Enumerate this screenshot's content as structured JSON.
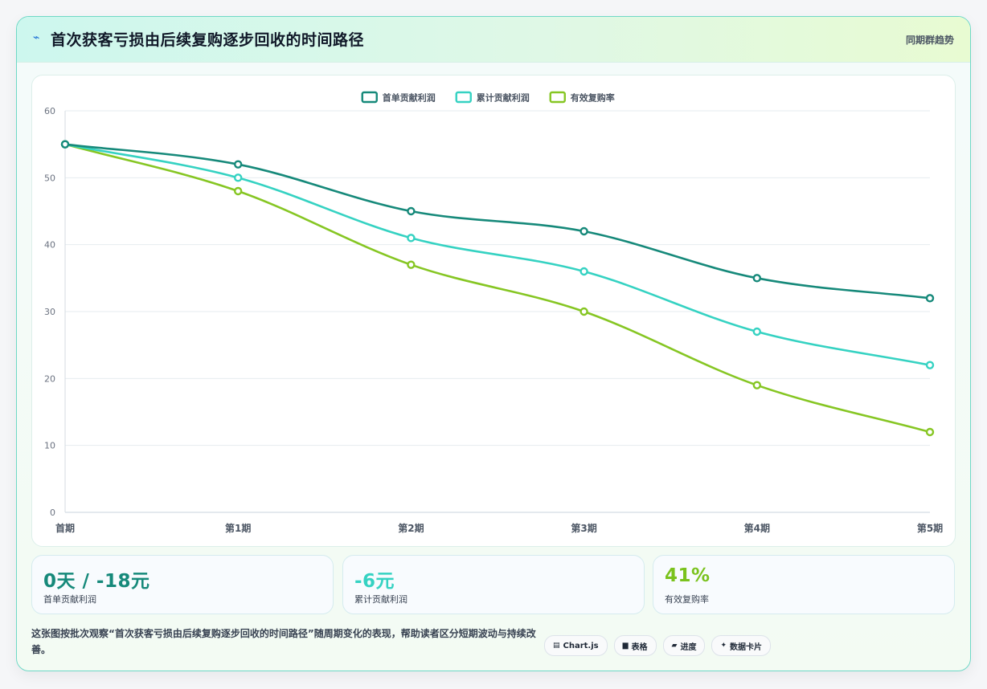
{
  "header": {
    "title": "首次获客亏损由后续复购逐步回收的时间路径",
    "right_label": "同期群趋势",
    "icon": "spark-icon"
  },
  "chart_data": {
    "type": "line",
    "categories": [
      "首期",
      "第1期",
      "第2期",
      "第3期",
      "第4期",
      "第5期"
    ],
    "series": [
      {
        "name": "首单贡献利润",
        "values": [
          55,
          52,
          45,
          42,
          35,
          32
        ],
        "color": "#16897a"
      },
      {
        "name": "累计贡献利润",
        "values": [
          55,
          50,
          41,
          36,
          27,
          22
        ],
        "color": "#35d2c2"
      },
      {
        "name": "有效复购率",
        "values": [
          55,
          48,
          37,
          30,
          19,
          12
        ],
        "color": "#86c623"
      }
    ],
    "ylim": [
      0,
      60
    ],
    "yticks": [
      0,
      10,
      20,
      30,
      40,
      50,
      60
    ],
    "grid": true,
    "legend": "top-center",
    "xlabel": "",
    "ylabel": ""
  },
  "kpis": [
    {
      "value": "0天 / -18元",
      "label": "首单贡献利润",
      "color": "#16897a"
    },
    {
      "value": "-6元",
      "label": "累计贡献利润",
      "color": "#35d2c2"
    },
    {
      "value": "41%",
      "label": "有效复购率",
      "color": "#7ac21d"
    }
  ],
  "footer": {
    "description": "这张图按批次观察“首次获客亏损由后续复购逐步回收的时间路径”随周期变化的表现，帮助读者区分短期波动与持续改善。",
    "chips": [
      {
        "icon": "▤",
        "label": "Chart.js"
      },
      {
        "icon": "▆",
        "label": "表格"
      },
      {
        "icon": "▰",
        "label": "进度"
      },
      {
        "icon": "✦",
        "label": "数据卡片"
      }
    ]
  }
}
